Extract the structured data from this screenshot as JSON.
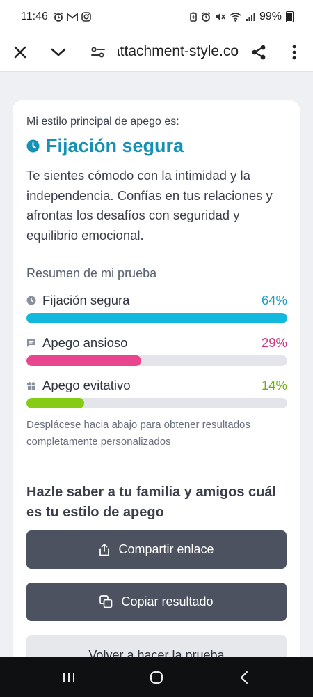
{
  "status_bar": {
    "time": "11:46",
    "left_icons": [
      "alarm-icon",
      "gmail-icon",
      "instagram-icon"
    ],
    "right_icons": [
      "battery-saver-icon",
      "alarm-icon",
      "mute-icon",
      "wifi-icon",
      "signal-icon"
    ],
    "battery": "99%"
  },
  "browser": {
    "url": "attachment-style.co",
    "buttons": [
      "close-icon",
      "chevron-down-icon",
      "site-settings-icon",
      "share-icon",
      "more-vert-icon"
    ]
  },
  "result": {
    "eyebrow": "Mi estilo principal de apego es:",
    "title": "Fijación segura",
    "description": "Te sientes cómodo con la intimidad y la independencia. Confías en tus relaciones y afrontas los desafíos con seguridad y equilibrio emocional."
  },
  "summary": {
    "title": "Resumen de mi prueba",
    "items": [
      {
        "label": "Fijación segura",
        "percent_text": "64%",
        "fill_fraction": 1.0,
        "color": "#12b8dd",
        "pct_color": "#1a9cc4",
        "icon": "clock-icon"
      },
      {
        "label": "Apego ansioso",
        "percent_text": "29%",
        "fill_fraction": 0.44,
        "color": "#e9458f",
        "pct_color": "#d6357f",
        "icon": "chat-icon"
      },
      {
        "label": "Apego evitativo",
        "percent_text": "14%",
        "fill_fraction": 0.22,
        "color": "#86cb14",
        "pct_color": "#6fb00c",
        "icon": "gift-icon"
      }
    ]
  },
  "hint": "Desplácese hacia abajo para obtener resultados completamente personalizados",
  "share": {
    "heading": "Hazle saber a tu familia y amigos cuál es tu estilo de apego",
    "share_button": "Compartir enlace",
    "copy_button": "Copiar resultado",
    "retake_button": "Volver a hacer la prueba"
  },
  "nav": {
    "buttons": [
      "recent-apps-icon",
      "home-icon",
      "back-icon"
    ]
  }
}
